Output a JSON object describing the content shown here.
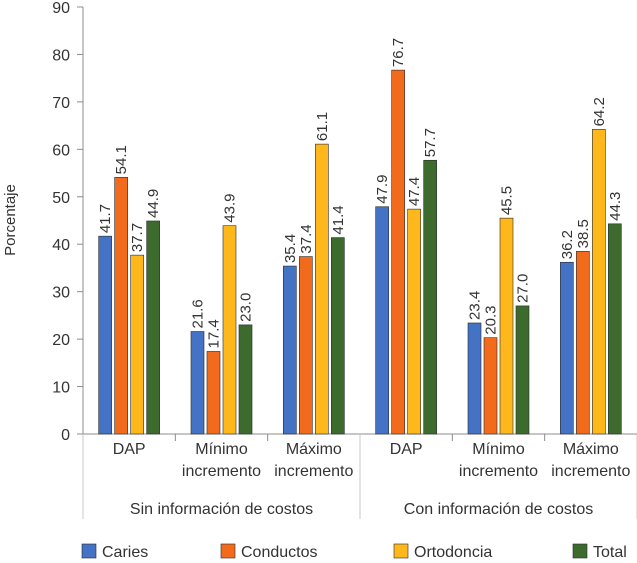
{
  "chart_data": {
    "type": "bar",
    "title": "",
    "ylabel": "Porcentaje",
    "xlabel": "",
    "ylim": [
      0,
      90
    ],
    "yticks": [
      0,
      10,
      20,
      30,
      40,
      50,
      60,
      70,
      80,
      90
    ],
    "grid": false,
    "legend_position": "bottom",
    "groups": [
      {
        "label": "Sin información de costos",
        "categories": [
          {
            "lines": [
              "DAP"
            ]
          },
          {
            "lines": [
              "Mínimo",
              "incremento"
            ]
          },
          {
            "lines": [
              "Máximo",
              "incremento"
            ]
          }
        ]
      },
      {
        "label": "Con información de costos",
        "categories": [
          {
            "lines": [
              "DAP"
            ]
          },
          {
            "lines": [
              "Mínimo",
              "incremento"
            ]
          },
          {
            "lines": [
              "Máximo",
              "incremento"
            ]
          }
        ]
      }
    ],
    "series": [
      {
        "name": "Caries",
        "color": "#4472C4",
        "values": [
          41.7,
          21.6,
          35.4,
          47.9,
          23.4,
          36.2
        ],
        "labels": [
          "41.7",
          "21.6",
          "35.4",
          "47.9",
          "23.4",
          "36.2"
        ]
      },
      {
        "name": "Conductos",
        "color": "#F26B1D",
        "values": [
          54.1,
          17.4,
          37.4,
          76.7,
          20.3,
          38.5
        ],
        "labels": [
          "54.1",
          "17.4",
          "37.4",
          "76.7",
          "20.3",
          "38.5"
        ]
      },
      {
        "name": "Ortodoncia",
        "color": "#FFB81C",
        "values": [
          37.7,
          43.9,
          61.1,
          47.4,
          45.5,
          64.2
        ],
        "labels": [
          "37.7",
          "43.9",
          "61.1",
          "47.4",
          "45.5",
          "64.2"
        ]
      },
      {
        "name": "Total",
        "color": "#3D6B2D",
        "values": [
          44.9,
          23.0,
          41.4,
          57.7,
          27.0,
          44.3
        ],
        "labels": [
          "44.9",
          "23.0",
          "41.4",
          "57.7",
          "27.0",
          "44.3"
        ]
      }
    ]
  }
}
